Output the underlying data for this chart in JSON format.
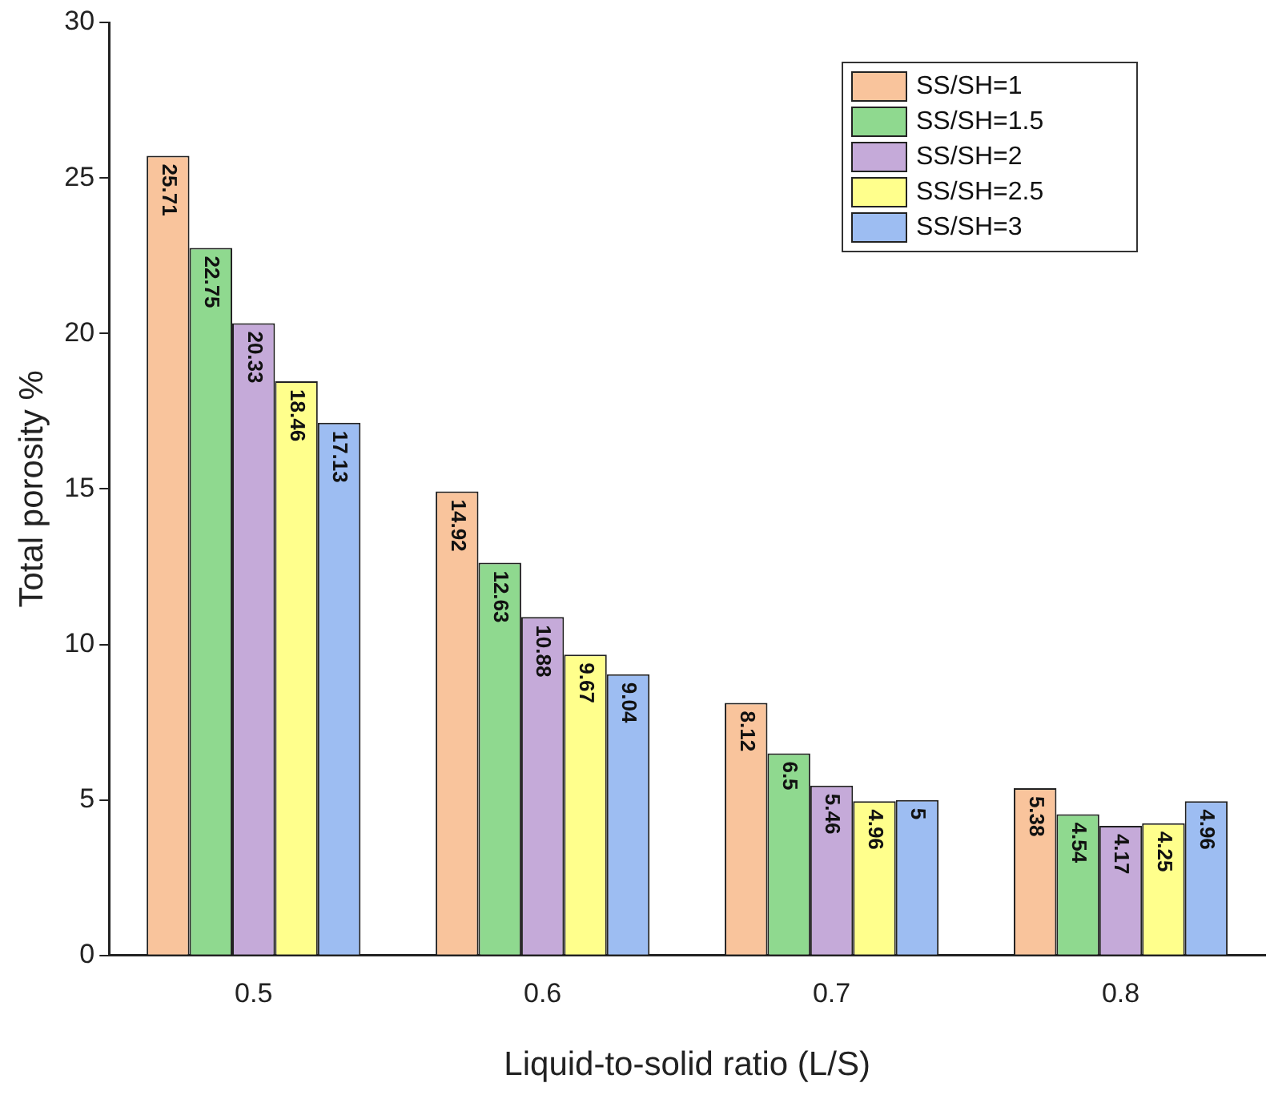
{
  "chart_data": {
    "type": "bar",
    "xlabel": "Liquid-to-solid ratio (L/S)",
    "ylabel": "Total porosity %",
    "categories": [
      "0.5",
      "0.6",
      "0.7",
      "0.8"
    ],
    "series": [
      {
        "name": "SS/SH=1",
        "color": "#f9c49c",
        "values": [
          25.71,
          14.92,
          8.12,
          5.38
        ]
      },
      {
        "name": "SS/SH=1.5",
        "color": "#8fd98f",
        "values": [
          22.75,
          12.63,
          6.5,
          4.54
        ]
      },
      {
        "name": "SS/SH=2",
        "color": "#c5aad9",
        "values": [
          20.33,
          10.88,
          5.46,
          4.17
        ]
      },
      {
        "name": "SS/SH=2.5",
        "color": "#ffff8c",
        "values": [
          18.46,
          9.67,
          4.96,
          4.25
        ]
      },
      {
        "name": "SS/SH=3",
        "color": "#9dbdf2",
        "values": [
          17.13,
          9.04,
          5,
          4.96
        ]
      }
    ],
    "ylim": [
      0,
      30
    ],
    "yticks": [
      0,
      5,
      10,
      15,
      20,
      25,
      30
    ],
    "grid": false,
    "legend": "top right",
    "data_labels": true
  }
}
